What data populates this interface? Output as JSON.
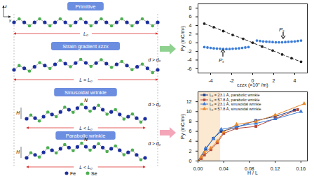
{
  "diagram": {
    "axes": [
      "z",
      "y"
    ],
    "panels": [
      {
        "title": "Primitive",
        "length_label": "L₀"
      },
      {
        "title": "Strain gradient εzzx",
        "distance_label": "d > d₀",
        "length_label": "L = L₀"
      },
      {
        "title": "Sinusoidal wrinkle",
        "distance_label": "d > d₀",
        "peak_label": "N",
        "height_label": "H",
        "length_label": "L < L₀"
      },
      {
        "title": "Parabolic wrinkle",
        "distance_label": "d > d₀",
        "peak_label": "N",
        "height_label": "H",
        "length_label": "L < L₀"
      }
    ],
    "legend": [
      {
        "name": "Fe",
        "color": "#1c2f9e"
      },
      {
        "name": "Se",
        "color": "#4caf50"
      }
    ]
  },
  "chart_data": [
    {
      "type": "scatter",
      "xlabel": "εzzx (×10⁷ /m)",
      "ylabel": "Py (mC/m²)",
      "xlim": [
        -5.2,
        5.2
      ],
      "xticks": [
        -4,
        -2,
        0,
        2,
        4
      ],
      "ylim": [
        -7,
        9
      ],
      "yticks": [
        -6,
        -4,
        -2,
        0,
        2,
        4,
        6,
        8
      ],
      "series": [
        {
          "color": "#222222",
          "marker": "circle",
          "line_style": "dashed",
          "x": [
            -4.6,
            -3.7,
            -2.8,
            -1.9,
            -0.9,
            0,
            0.9,
            1.9,
            2.8,
            3.7,
            4.6
          ],
          "values": [
            4.4,
            3.6,
            2.7,
            1.8,
            0.9,
            0.0,
            -0.9,
            -1.8,
            -2.7,
            -3.6,
            -4.4
          ]
        },
        {
          "color": "#3b7dd8",
          "marker": "circle",
          "x": [
            -4.6,
            -4.3,
            -4.0,
            -3.7,
            -3.4,
            -3.1,
            -2.8,
            -2.5,
            -2.2,
            -1.9,
            -1.6,
            -1.3,
            -1.0,
            -0.7,
            -0.4
          ],
          "values": [
            -1.0,
            -1.1,
            -1.2,
            -1.3,
            -1.35,
            -1.4,
            -1.45,
            -1.45,
            -1.45,
            -1.4,
            -1.35,
            -1.3,
            -1.2,
            -1.1,
            -1.0
          ]
        },
        {
          "color": "#3b7dd8",
          "marker": "circle",
          "x": [
            0.4,
            0.7,
            1.0,
            1.3,
            1.6,
            1.9,
            2.2,
            2.5,
            2.8,
            3.1,
            3.4,
            3.7,
            4.0,
            4.3,
            4.6
          ],
          "values": [
            0.5,
            0.4,
            0.3,
            0.25,
            0.2,
            0.15,
            0.1,
            0.1,
            0.1,
            0.15,
            0.2,
            0.25,
            0.3,
            0.4,
            0.5
          ]
        }
      ],
      "annotations": [
        "Pₛ",
        "Pₛ"
      ]
    },
    {
      "type": "line",
      "xlabel": "H / L",
      "ylabel": "Py (mC/m²)",
      "xlim": [
        0,
        0.17
      ],
      "xticks": [
        {
          "value": 0,
          "label": "0.00"
        },
        {
          "value": 0.04,
          "label": "0.04"
        },
        {
          "value": 0.08,
          "label": "0.08"
        },
        {
          "value": 0.12,
          "label": "0.12"
        },
        {
          "value": 0.16,
          "label": "0.16"
        }
      ],
      "ylim": [
        0,
        14
      ],
      "yticks": [
        0,
        2,
        4,
        6,
        8,
        10,
        12
      ],
      "shaded_region": {
        "x": [
          0,
          0.035
        ],
        "color": "#fbe9d2"
      },
      "legend": "top-left",
      "series": [
        {
          "name": "L₀ = 23.1 Å, parabolic wrinkle",
          "color": "#1a3d8f",
          "marker": "square",
          "x": [
            0,
            0.012,
            0.024,
            0.036,
            0.06,
            0.09,
            0.12,
            0.15
          ],
          "values": [
            0,
            2.4,
            4.6,
            6.0,
            6.8,
            8.2,
            9.0,
            10.3
          ]
        },
        {
          "name": "L₀ = 57.8 Å, parabolic wrinkle",
          "color": "#b5473a",
          "marker": "square",
          "x": [
            0,
            0.005,
            0.01,
            0.02,
            0.03,
            0.04,
            0.06,
            0.09,
            0.12,
            0.155
          ],
          "values": [
            0,
            0.5,
            1.2,
            2.3,
            3.7,
            5.6,
            6.6,
            7.0,
            8.6,
            10.4
          ]
        },
        {
          "name": "L₀ = 23.1 Å, sinusoidal wrinkle",
          "color": "#3a7bd5",
          "marker": "triangle",
          "x": [
            0,
            0.012,
            0.024,
            0.036,
            0.06,
            0.09,
            0.12,
            0.16
          ],
          "values": [
            0,
            2.6,
            4.5,
            6.4,
            7.0,
            7.6,
            8.5,
            10.0
          ]
        },
        {
          "name": "L₀ = 57.8 Å, sinusoidal wrinkle",
          "color": "#e8862a",
          "marker": "triangle",
          "x": [
            0,
            0.005,
            0.01,
            0.02,
            0.03,
            0.04,
            0.06,
            0.09,
            0.12,
            0.165
          ],
          "values": [
            0,
            0.8,
            1.7,
            2.6,
            4.0,
            5.9,
            7.4,
            8.0,
            9.3,
            11.6
          ]
        }
      ]
    }
  ]
}
